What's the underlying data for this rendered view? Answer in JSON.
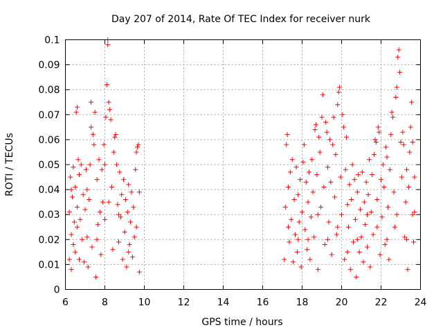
{
  "chart_data": {
    "type": "scatter",
    "title": "Day 207 of 2014, Rate Of TEC Index for receiver nurk",
    "xlabel": "GPS time / hours",
    "ylabel": "ROTI / TECUs",
    "xlim": [
      6,
      24
    ],
    "ylim": [
      0,
      0.1
    ],
    "x_ticks": [
      6,
      8,
      10,
      12,
      14,
      16,
      18,
      20,
      22,
      24
    ],
    "y_ticks": [
      0,
      0.01,
      0.02,
      0.03,
      0.04,
      0.05,
      0.06,
      0.07,
      0.08,
      0.09,
      0.1
    ],
    "x_tick_labels": [
      "6",
      "8",
      "10",
      "12",
      "14",
      "16",
      "18",
      "20",
      "22",
      "24"
    ],
    "y_tick_labels": [
      "0",
      "0.01",
      "0.02",
      "0.03",
      "0.04",
      "0.05",
      "0.06",
      "0.07",
      "0.08",
      "0.09",
      "0.1"
    ],
    "grid": true,
    "marker": "+",
    "color": "#ff0000",
    "series": [
      {
        "points": [
          [
            6.2,
            0.012
          ],
          [
            6.2,
            0.031
          ],
          [
            6.25,
            0.045
          ],
          [
            6.3,
            0.022
          ],
          [
            6.3,
            0.008
          ],
          [
            6.35,
            0.037
          ],
          [
            6.4,
            0.018
          ],
          [
            6.4,
            0.049
          ],
          [
            6.45,
            0.027
          ],
          [
            6.5,
            0.041
          ],
          [
            6.5,
            0.015
          ],
          [
            6.55,
            0.071
          ],
          [
            6.6,
            0.073
          ],
          [
            6.6,
            0.033
          ],
          [
            6.65,
            0.052
          ],
          [
            6.7,
            0.012
          ],
          [
            6.7,
            0.046
          ],
          [
            6.75,
            0.028
          ],
          [
            6.8,
            0.05
          ],
          [
            6.85,
            0.02
          ],
          [
            6.9,
            0.038
          ],
          [
            6.95,
            0.011
          ],
          [
            7.0,
            0.032
          ],
          [
            7.05,
            0.048
          ],
          [
            7.1,
            0.021
          ],
          [
            7.15,
            0.009
          ],
          [
            7.2,
            0.036
          ],
          [
            7.25,
            0.05
          ],
          [
            7.3,
            0.065
          ],
          [
            7.3,
            0.075
          ],
          [
            7.35,
            0.017
          ],
          [
            7.4,
            0.062
          ],
          [
            7.45,
            0.058
          ],
          [
            7.5,
            0.071
          ],
          [
            7.55,
            0.005
          ],
          [
            7.6,
            0.044
          ],
          [
            7.65,
            0.026
          ],
          [
            7.7,
            0.052
          ],
          [
            7.75,
            0.031
          ],
          [
            7.8,
            0.014
          ],
          [
            7.85,
            0.048
          ],
          [
            7.9,
            0.035
          ],
          [
            7.95,
            0.058
          ],
          [
            8.0,
            0.028
          ],
          [
            8.0,
            0.05
          ],
          [
            8.05,
            0.069
          ],
          [
            8.1,
            0.082
          ],
          [
            8.15,
            0.098
          ],
          [
            8.15,
            0.1
          ],
          [
            8.2,
            0.075
          ],
          [
            8.25,
            0.072
          ],
          [
            8.3,
            0.068
          ],
          [
            8.35,
            0.041
          ],
          [
            8.4,
            0.016
          ],
          [
            8.45,
            0.055
          ],
          [
            8.5,
            0.061
          ],
          [
            8.55,
            0.062
          ],
          [
            8.6,
            0.05
          ],
          [
            8.65,
            0.034
          ],
          [
            8.7,
            0.019
          ],
          [
            8.75,
            0.047
          ],
          [
            8.8,
            0.029
          ],
          [
            8.85,
            0.038
          ],
          [
            8.9,
            0.012
          ],
          [
            8.95,
            0.044
          ],
          [
            9.0,
            0.023
          ],
          [
            9.05,
            0.036
          ],
          [
            9.1,
            0.009
          ],
          [
            9.15,
            0.031
          ],
          [
            9.2,
            0.042
          ],
          [
            9.25,
            0.018
          ],
          [
            9.3,
            0.027
          ],
          [
            9.35,
            0.039
          ],
          [
            9.4,
            0.013
          ],
          [
            9.45,
            0.033
          ],
          [
            9.5,
            0.021
          ],
          [
            9.55,
            0.048
          ],
          [
            9.6,
            0.055
          ],
          [
            9.65,
            0.057
          ],
          [
            9.7,
            0.058
          ],
          [
            9.75,
            0.007
          ],
          [
            9.75,
            0.039
          ],
          [
            6.3,
            0.04
          ],
          [
            6.6,
            0.025
          ],
          [
            7.1,
            0.04
          ],
          [
            7.6,
            0.02
          ],
          [
            8.2,
            0.035
          ],
          [
            8.7,
            0.03
          ],
          [
            9.2,
            0.015
          ],
          [
            9.6,
            0.025
          ],
          [
            17.1,
            0.012
          ],
          [
            17.15,
            0.033
          ],
          [
            17.2,
            0.058
          ],
          [
            17.25,
            0.062
          ],
          [
            17.3,
            0.041
          ],
          [
            17.35,
            0.019
          ],
          [
            17.4,
            0.047
          ],
          [
            17.45,
            0.028
          ],
          [
            17.5,
            0.052
          ],
          [
            17.55,
            0.011
          ],
          [
            17.6,
            0.036
          ],
          [
            17.65,
            0.022
          ],
          [
            17.7,
            0.049
          ],
          [
            17.75,
            0.015
          ],
          [
            17.8,
            0.038
          ],
          [
            17.85,
            0.027
          ],
          [
            17.9,
            0.044
          ],
          [
            17.95,
            0.009
          ],
          [
            18.0,
            0.031
          ],
          [
            18.05,
            0.051
          ],
          [
            18.1,
            0.058
          ],
          [
            18.15,
            0.024
          ],
          [
            18.2,
            0.043
          ],
          [
            18.25,
            0.016
          ],
          [
            18.3,
            0.035
          ],
          [
            18.35,
            0.047
          ],
          [
            18.4,
            0.012
          ],
          [
            18.45,
            0.029
          ],
          [
            18.5,
            0.052
          ],
          [
            18.55,
            0.039
          ],
          [
            18.6,
            0.021
          ],
          [
            18.65,
            0.064
          ],
          [
            18.7,
            0.066
          ],
          [
            18.75,
            0.046
          ],
          [
            18.8,
            0.008
          ],
          [
            18.85,
            0.061
          ],
          [
            18.9,
            0.055
          ],
          [
            18.95,
            0.033
          ],
          [
            19.0,
            0.069
          ],
          [
            19.05,
            0.078
          ],
          [
            19.1,
            0.041
          ],
          [
            19.15,
            0.018
          ],
          [
            19.2,
            0.067
          ],
          [
            19.25,
            0.063
          ],
          [
            19.3,
            0.049
          ],
          [
            19.35,
            0.027
          ],
          [
            19.4,
            0.06
          ],
          [
            19.45,
            0.043
          ],
          [
            19.5,
            0.014
          ],
          [
            19.55,
            0.058
          ],
          [
            19.6,
            0.069
          ],
          [
            19.65,
            0.037
          ],
          [
            19.7,
            0.054
          ],
          [
            19.75,
            0.022
          ],
          [
            19.8,
            0.074
          ],
          [
            19.85,
            0.079
          ],
          [
            19.9,
            0.081
          ],
          [
            19.95,
            0.045
          ],
          [
            20.0,
            0.03
          ],
          [
            20.05,
            0.07
          ],
          [
            20.1,
            0.065
          ],
          [
            20.15,
            0.012
          ],
          [
            20.2,
            0.048
          ],
          [
            20.25,
            0.061
          ],
          [
            20.3,
            0.034
          ],
          [
            20.35,
            0.025
          ],
          [
            20.4,
            0.042
          ],
          [
            20.45,
            0.008
          ],
          [
            20.5,
            0.036
          ],
          [
            20.55,
            0.05
          ],
          [
            20.6,
            0.019
          ],
          [
            20.65,
            0.044
          ],
          [
            20.7,
            0.028
          ],
          [
            20.75,
            0.005
          ],
          [
            20.8,
            0.039
          ],
          [
            20.85,
            0.046
          ],
          [
            20.9,
            0.015
          ],
          [
            20.95,
            0.032
          ],
          [
            21.0,
            0.021
          ],
          [
            21.05,
            0.047
          ],
          [
            21.1,
            0.011
          ],
          [
            21.15,
            0.035
          ],
          [
            21.2,
            0.026
          ],
          [
            21.25,
            0.043
          ],
          [
            21.3,
            0.017
          ],
          [
            21.35,
            0.038
          ],
          [
            21.4,
            0.052
          ],
          [
            21.45,
            0.009
          ],
          [
            21.5,
            0.031
          ],
          [
            21.55,
            0.046
          ],
          [
            21.6,
            0.022
          ],
          [
            21.65,
            0.054
          ],
          [
            21.7,
            0.06
          ],
          [
            21.75,
            0.059
          ],
          [
            21.8,
            0.036
          ],
          [
            21.85,
            0.065
          ],
          [
            21.9,
            0.063
          ],
          [
            21.95,
            0.014
          ],
          [
            22.0,
            0.044
          ],
          [
            22.05,
            0.029
          ],
          [
            22.1,
            0.05
          ],
          [
            22.15,
            0.041
          ],
          [
            22.2,
            0.018
          ],
          [
            22.25,
            0.057
          ],
          [
            22.3,
            0.053
          ],
          [
            22.35,
            0.033
          ],
          [
            22.4,
            0.012
          ],
          [
            22.45,
            0.048
          ],
          [
            22.5,
            0.062
          ],
          [
            22.55,
            0.071
          ],
          [
            22.6,
            0.069
          ],
          [
            22.65,
            0.039
          ],
          [
            22.7,
            0.025
          ],
          [
            22.75,
            0.077
          ],
          [
            22.8,
            0.081
          ],
          [
            22.85,
            0.093
          ],
          [
            22.9,
            0.096
          ],
          [
            22.95,
            0.087
          ],
          [
            23.0,
            0.059
          ],
          [
            23.05,
            0.045
          ],
          [
            23.1,
            0.063
          ],
          [
            23.15,
            0.058
          ],
          [
            23.2,
            0.021
          ],
          [
            23.25,
            0.035
          ],
          [
            23.3,
            0.048
          ],
          [
            23.35,
            0.008
          ],
          [
            23.4,
            0.041
          ],
          [
            23.45,
            0.055
          ],
          [
            23.5,
            0.065
          ],
          [
            23.55,
            0.075
          ],
          [
            23.6,
            0.059
          ],
          [
            23.65,
            0.019
          ],
          [
            23.7,
            0.031
          ],
          [
            23.7,
            0.045
          ],
          [
            17.3,
            0.025
          ],
          [
            17.8,
            0.02
          ],
          [
            18.3,
            0.02
          ],
          [
            18.8,
            0.03
          ],
          [
            19.3,
            0.02
          ],
          [
            19.8,
            0.025
          ],
          [
            20.3,
            0.015
          ],
          [
            20.8,
            0.02
          ],
          [
            21.3,
            0.03
          ],
          [
            21.8,
            0.025
          ],
          [
            22.3,
            0.02
          ],
          [
            22.8,
            0.03
          ],
          [
            23.3,
            0.02
          ],
          [
            23.6,
            0.03
          ]
        ]
      }
    ]
  }
}
